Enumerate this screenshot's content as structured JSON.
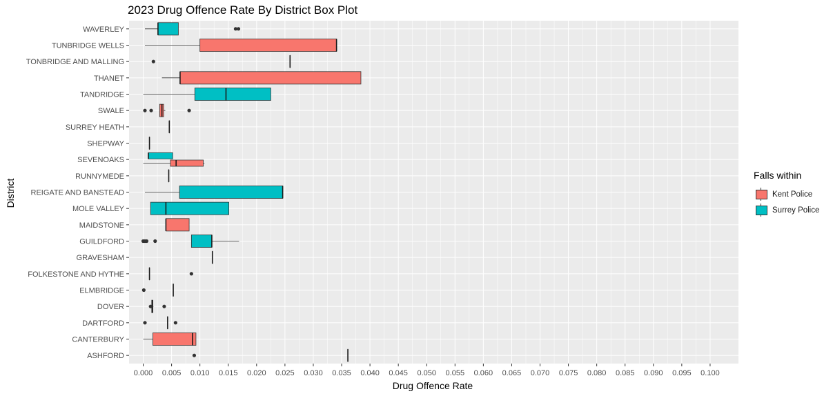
{
  "chart_data": {
    "type": "boxplot",
    "orientation": "horizontal",
    "title": "2023 Drug Offence Rate By District Box Plot",
    "xlabel": "Drug Offence Rate",
    "ylabel": "District",
    "xlim": [
      -0.0025,
      0.105
    ],
    "x_ticks": [
      "0.000",
      "0.005",
      "0.010",
      "0.015",
      "0.020",
      "0.025",
      "0.030",
      "0.035",
      "0.040",
      "0.045",
      "0.050",
      "0.055",
      "0.060",
      "0.065",
      "0.070",
      "0.075",
      "0.080",
      "0.085",
      "0.090",
      "0.095",
      "0.100"
    ],
    "categories": [
      "WAVERLEY",
      "TUNBRIDGE WELLS",
      "TONBRIDGE AND MALLING",
      "THANET",
      "TANDRIDGE",
      "SWALE",
      "SURREY HEATH",
      "SHEPWAY",
      "SEVENOAKS",
      "RUNNYMEDE",
      "REIGATE AND BANSTEAD",
      "MOLE VALLEY",
      "MAIDSTONE",
      "GUILDFORD",
      "GRAVESHAM",
      "FOLKESTONE AND HYTHE",
      "ELMBRIDGE",
      "DOVER",
      "DARTFORD",
      "CANTERBURY",
      "ASHFORD"
    ],
    "grid": true,
    "legend_position": "right",
    "legend": {
      "title": "Falls within",
      "entries": [
        {
          "name": "Kent Police",
          "color": "#F8766D"
        },
        {
          "name": "Surrey Police",
          "color": "#00BFC4"
        }
      ]
    },
    "series": [
      {
        "name": "Kent Police",
        "color": "#F8766D",
        "boxes": [
          {
            "category": "TUNBRIDGE WELLS",
            "min": 0.0003,
            "q1": 0.01,
            "median": 0.0341,
            "q3": 0.0341,
            "max": 0.0341,
            "outliers": []
          },
          {
            "category": "TONBRIDGE AND MALLING",
            "min": 0.0259,
            "q1": 0.0259,
            "median": 0.0259,
            "q3": 0.0259,
            "max": 0.0259,
            "outliers": [
              0.0018
            ]
          },
          {
            "category": "THANET",
            "min": 0.0033,
            "q1": 0.0065,
            "median": 0.0065,
            "q3": 0.0384,
            "max": 0.0384,
            "outliers": []
          },
          {
            "category": "SWALE",
            "min": 0.0029,
            "q1": 0.0029,
            "median": 0.0033,
            "q3": 0.0036,
            "max": 0.0039,
            "outliers": [
              0.0003,
              0.0014,
              0.0081
            ]
          },
          {
            "category": "SHEPWAY",
            "min": 0.0011,
            "q1": 0.0011,
            "median": 0.0011,
            "q3": 0.0011,
            "max": 0.0011,
            "outliers": []
          },
          {
            "category": "SEVENOAKS",
            "min": 0.0,
            "q1": 0.0048,
            "median": 0.0058,
            "q3": 0.0106,
            "max": 0.0108,
            "outliers": []
          },
          {
            "category": "MAIDSTONE",
            "min": 0.004,
            "q1": 0.004,
            "median": 0.004,
            "q3": 0.0081,
            "max": 0.0081,
            "outliers": []
          },
          {
            "category": "GRAVESHAM",
            "min": 0.0122,
            "q1": 0.0122,
            "median": 0.0122,
            "q3": 0.0122,
            "max": 0.0122,
            "outliers": []
          },
          {
            "category": "FOLKESTONE AND HYTHE",
            "min": 0.0011,
            "q1": 0.0011,
            "median": 0.0011,
            "q3": 0.0011,
            "max": 0.0011,
            "outliers": [
              0.0085
            ]
          },
          {
            "category": "DOVER",
            "min": 0.0015,
            "q1": 0.0015,
            "median": 0.0016,
            "q3": 0.0017,
            "max": 0.0018,
            "outliers": [
              0.0013,
              0.0037
            ]
          },
          {
            "category": "DARTFORD",
            "min": 0.0043,
            "q1": 0.0043,
            "median": 0.0043,
            "q3": 0.0043,
            "max": 0.0043,
            "outliers": [
              0.0003,
              0.0057
            ]
          },
          {
            "category": "CANTERBURY",
            "min": 0.0,
            "q1": 0.0017,
            "median": 0.0087,
            "q3": 0.0093,
            "max": 0.0093,
            "outliers": []
          },
          {
            "category": "ASHFORD",
            "min": 0.0361,
            "q1": 0.0361,
            "median": 0.0361,
            "q3": 0.0361,
            "max": 0.0361,
            "outliers": [
              0.009
            ]
          }
        ]
      },
      {
        "name": "Surrey Police",
        "color": "#00BFC4",
        "boxes": [
          {
            "category": "WAVERLEY",
            "min": 0.0003,
            "q1": 0.0026,
            "median": 0.0026,
            "q3": 0.0062,
            "max": 0.0062,
            "outliers": [
              0.0163,
              0.0168
            ]
          },
          {
            "category": "TANDRIDGE",
            "min": 0.0,
            "q1": 0.0091,
            "median": 0.0146,
            "q3": 0.0225,
            "max": 0.0225,
            "outliers": []
          },
          {
            "category": "SURREY HEATH",
            "min": 0.0046,
            "q1": 0.0046,
            "median": 0.0046,
            "q3": 0.0046,
            "max": 0.0046,
            "outliers": []
          },
          {
            "category": "SEVENOAKS",
            "min": 0.0009,
            "q1": 0.0009,
            "median": 0.0009,
            "q3": 0.0052,
            "max": 0.0052,
            "outliers": []
          },
          {
            "category": "RUNNYMEDE",
            "min": 0.0045,
            "q1": 0.0045,
            "median": 0.0045,
            "q3": 0.0045,
            "max": 0.0045,
            "outliers": []
          },
          {
            "category": "REIGATE AND BANSTEAD",
            "min": 0.0003,
            "q1": 0.0064,
            "median": 0.0246,
            "q3": 0.0246,
            "max": 0.0246,
            "outliers": []
          },
          {
            "category": "MOLE VALLEY",
            "min": 0.0013,
            "q1": 0.0013,
            "median": 0.004,
            "q3": 0.0151,
            "max": 0.0151,
            "outliers": []
          },
          {
            "category": "GUILDFORD",
            "min": 0.0085,
            "q1": 0.0085,
            "median": 0.0121,
            "q3": 0.0121,
            "max": 0.0169,
            "outliers": [
              0.0,
              0.0003,
              0.0006,
              0.0021
            ]
          },
          {
            "category": "ELMBRIDGE",
            "min": 0.0053,
            "q1": 0.0053,
            "median": 0.0053,
            "q3": 0.0053,
            "max": 0.0053,
            "outliers": [
              0.0001
            ]
          }
        ]
      }
    ]
  }
}
